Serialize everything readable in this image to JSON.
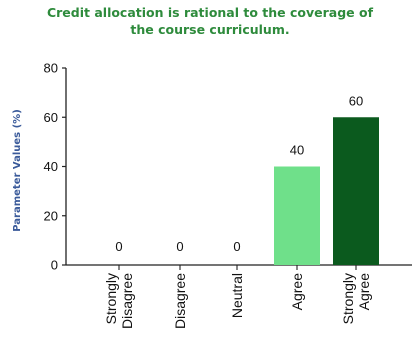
{
  "chart_data": {
    "type": "bar",
    "title": "Credit allocation is rational to the coverage of\nthe course curriculum.",
    "ylabel": "Parameter Values (%)",
    "xlabel": "",
    "categories": [
      "Strongly\nDisagree",
      "Disagree",
      "Neutral",
      "Agree",
      "Strongly\nAgree"
    ],
    "values": [
      0,
      0,
      0,
      40,
      60
    ],
    "data_labels": [
      "0",
      "0",
      "0",
      "40",
      "60"
    ],
    "yticks": [
      0,
      20,
      40,
      60,
      80
    ],
    "ylim": [
      0,
      80
    ],
    "grid": false,
    "legend": "none",
    "bar_colors": [
      "#6fe08a",
      "#6fe08a",
      "#6fe08a",
      "#6fe08a",
      "#0b5a1e"
    ],
    "title_color": "#2e8b3c",
    "ylabel_color": "#3a5a9a"
  }
}
